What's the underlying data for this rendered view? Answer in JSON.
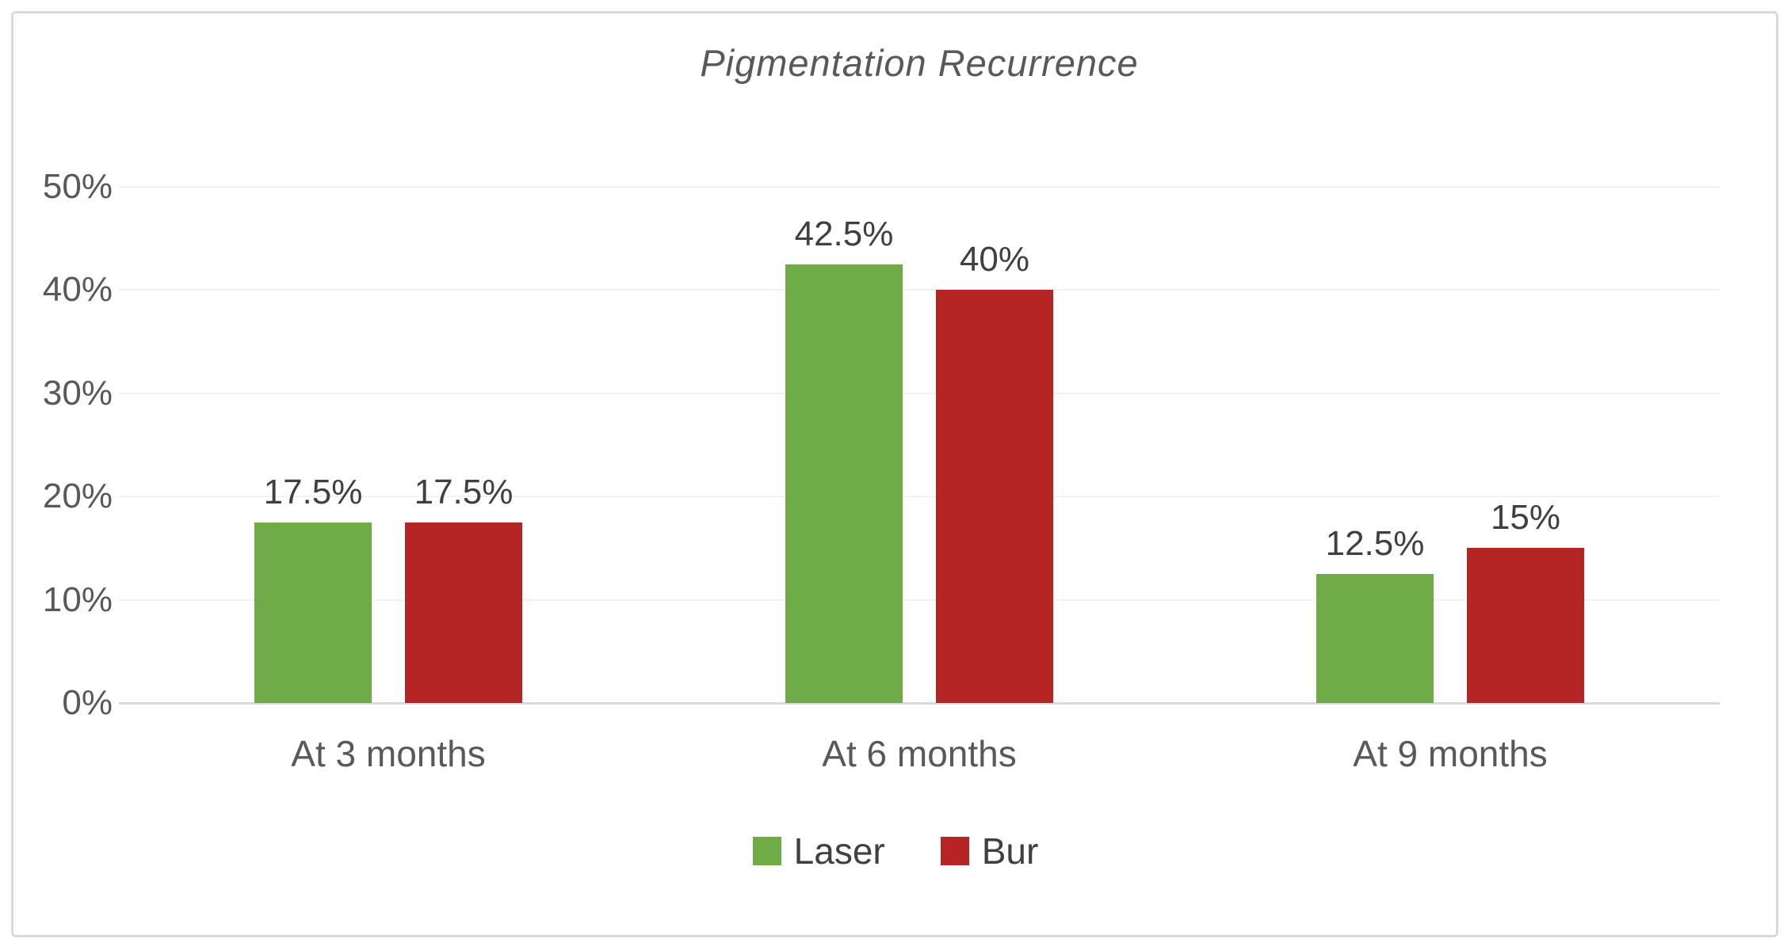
{
  "figure": {
    "background": "#ffffff",
    "border_color": "#dadada"
  },
  "chart_data": {
    "type": "bar",
    "title": "Pigmentation Recurrence",
    "categories": [
      "At 3 months",
      "At 6 months",
      "At 9 months"
    ],
    "series": [
      {
        "name": "Laser",
        "color": "#6FAC47",
        "values": [
          17.5,
          42.5,
          12.5
        ],
        "labels": [
          "17.5%",
          "42.5%",
          "12.5%"
        ]
      },
      {
        "name": "Bur",
        "color": "#B42524",
        "values": [
          17.5,
          40,
          15
        ],
        "labels": [
          "17.5%",
          "40%",
          "15%"
        ]
      }
    ],
    "ylabel": "",
    "xlabel": "",
    "ylim": [
      0,
      50
    ],
    "yticks": [
      "0%",
      "10%",
      "20%",
      "30%",
      "40%",
      "50%"
    ],
    "ytick_values": [
      0,
      10,
      20,
      30,
      40,
      50
    ],
    "grid": "horizontal",
    "gridline_color": "#f2f2f2",
    "axis_line_color": "#d9d9d9",
    "legend_position": "bottom",
    "data_labels_shown": true
  }
}
